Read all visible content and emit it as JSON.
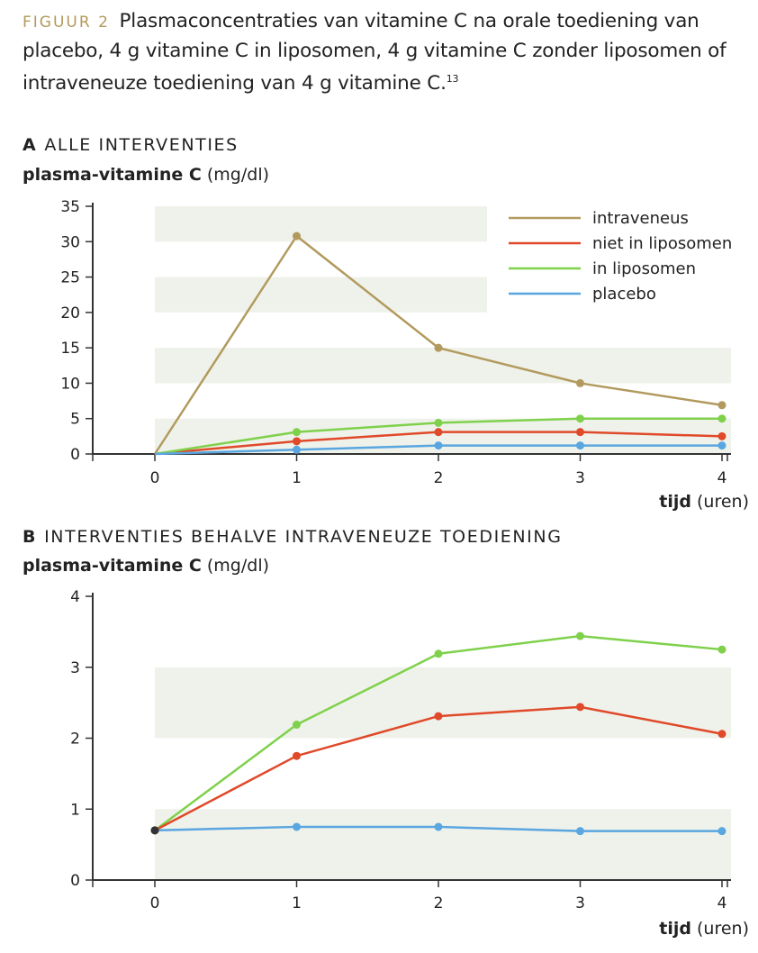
{
  "caption": {
    "figure_label": "FIGUUR 2",
    "text": "Plasmaconcentraties van vitamine C na orale toediening van placebo, 4 g vitamine C in liposomen, 4 g vitamine C zonder liposomen of intraveneuze toediening van 4 g vitamine C.",
    "reference": "13"
  },
  "colors": {
    "intraveneus": "#b29a5e",
    "niet_in_liposomen": "#e0492a",
    "in_liposomen": "#7fd14c",
    "placebo": "#5aa6e0",
    "band": "#eff2ea",
    "axis": "#333333"
  },
  "chart_data": [
    {
      "type": "line",
      "panel_letter": "A",
      "title": "ALLE INTERVENTIES",
      "ylabel": "plasma-vitamine C",
      "yunit": "(mg/dl)",
      "xlabel": "tijd",
      "xunit": "(uren)",
      "x": [
        0,
        1,
        2,
        3,
        4
      ],
      "xlim": [
        -0.45,
        4.05
      ],
      "ylim": [
        0,
        35
      ],
      "yticks": [
        0,
        5,
        10,
        15,
        20,
        25,
        30,
        35
      ],
      "grid": "alternating-bands",
      "legend": "top-right",
      "series": [
        {
          "name": "intraveneus",
          "color_key": "intraveneus",
          "values": [
            0,
            30.8,
            15,
            10,
            6.9
          ]
        },
        {
          "name": "niet in liposomen",
          "color_key": "niet_in_liposomen",
          "values": [
            0,
            1.8,
            3.1,
            3.1,
            2.5
          ]
        },
        {
          "name": "in liposomen",
          "color_key": "in_liposomen",
          "values": [
            0,
            3.1,
            4.4,
            5,
            5
          ]
        },
        {
          "name": "placebo",
          "color_key": "placebo",
          "values": [
            0,
            0.6,
            1.2,
            1.2,
            1.2
          ]
        }
      ]
    },
    {
      "type": "line",
      "panel_letter": "B",
      "title": "INTERVENTIES BEHALVE INTRAVENEUZE TOEDIENING",
      "ylabel": "plasma-vitamine C",
      "yunit": "(mg/dl)",
      "xlabel": "tijd",
      "xunit": "(uren)",
      "x": [
        0,
        1,
        2,
        3,
        4
      ],
      "xlim": [
        -0.45,
        4.05
      ],
      "ylim": [
        0,
        4
      ],
      "yticks": [
        0,
        1,
        2,
        3,
        4
      ],
      "grid": "alternating-bands",
      "legend": "none",
      "series": [
        {
          "name": "in liposomen",
          "color_key": "in_liposomen",
          "values": [
            0.7,
            2.19,
            3.19,
            3.44,
            3.25
          ]
        },
        {
          "name": "niet in liposomen",
          "color_key": "niet_in_liposomen",
          "values": [
            0.7,
            1.75,
            2.31,
            2.44,
            2.06
          ]
        },
        {
          "name": "placebo",
          "color_key": "placebo",
          "values": [
            0.7,
            0.75,
            0.75,
            0.69,
            0.69
          ]
        }
      ],
      "start_marker_color": "#333333"
    }
  ]
}
